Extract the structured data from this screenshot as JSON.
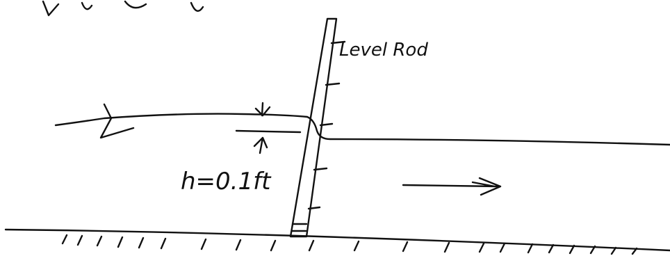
{
  "labels": {
    "rod": "Level Rod",
    "depth": "h=0.1ft"
  }
}
